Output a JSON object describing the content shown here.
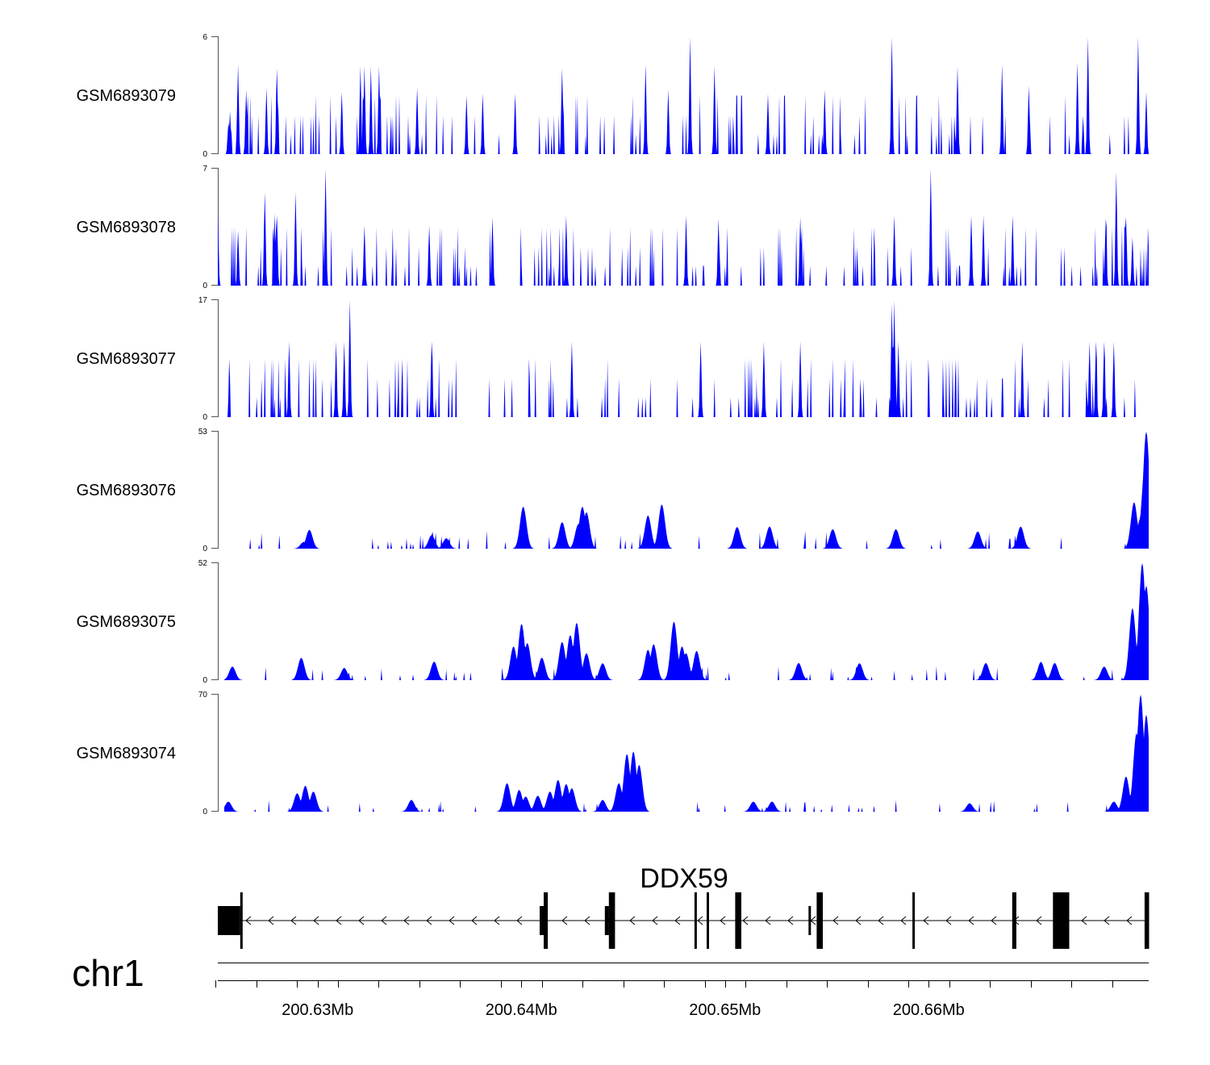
{
  "chart_data": {
    "type": "area",
    "title": "",
    "chromosome": "chr1",
    "region": [
      200.6251,
      200.6708
    ],
    "region_units": "Mb",
    "fill_color": "#0000ff",
    "gene_color": "#000000",
    "tracks": [
      {
        "name": "GSM6893079",
        "ylim": [
          0,
          6
        ],
        "ytick_labels": [
          "0",
          "6"
        ],
        "seed": 7919,
        "baseline_pct": 0.17,
        "bumps": [
          [
            200.6256,
            1.6
          ],
          [
            200.6257,
            2.2
          ],
          [
            200.6261,
            4.6
          ],
          [
            200.6265,
            3.3
          ],
          [
            200.6275,
            3.4
          ],
          [
            200.628,
            4.4
          ],
          [
            200.6312,
            3.2
          ],
          [
            200.6321,
            4.5
          ],
          [
            200.6323,
            4.5
          ],
          [
            200.6326,
            4.5
          ],
          [
            200.633,
            4.5
          ],
          [
            200.6349,
            3.4
          ],
          [
            200.6373,
            3.0
          ],
          [
            200.6381,
            3.1
          ],
          [
            200.6397,
            3.1
          ],
          [
            200.642,
            4.4
          ],
          [
            200.6461,
            4.6
          ],
          [
            200.6472,
            3.3
          ],
          [
            200.6483,
            6.0
          ],
          [
            200.6495,
            4.5
          ],
          [
            200.6521,
            3.1
          ],
          [
            200.6549,
            3.3
          ],
          [
            200.6582,
            4.5
          ],
          [
            200.6582,
            6.0
          ],
          [
            200.6614,
            4.5
          ],
          [
            200.6636,
            4.6
          ],
          [
            200.6649,
            3.5
          ],
          [
            200.6673,
            4.7
          ],
          [
            200.6678,
            6.0
          ],
          [
            200.6703,
            6.0
          ],
          [
            200.6707,
            3.2
          ]
        ]
      },
      {
        "name": "GSM6893078",
        "ylim": [
          0,
          7
        ],
        "ytick_labels": [
          "0",
          "7"
        ],
        "seed": 6301,
        "baseline_pct": 0.2,
        "bumps": [
          [
            200.6251,
            4.3
          ],
          [
            200.6261,
            3.3
          ],
          [
            200.6274,
            5.6
          ],
          [
            200.6279,
            4.3
          ],
          [
            200.628,
            4.2
          ],
          [
            200.6289,
            5.6
          ],
          [
            200.6304,
            7.0
          ],
          [
            200.6323,
            3.6
          ],
          [
            200.6355,
            3.6
          ],
          [
            200.6386,
            4.1
          ],
          [
            200.6422,
            4.2
          ],
          [
            200.6481,
            4.2
          ],
          [
            200.6497,
            4.0
          ],
          [
            200.6537,
            4.1
          ],
          [
            200.6583,
            4.2
          ],
          [
            200.6601,
            7.0
          ],
          [
            200.6621,
            4.2
          ],
          [
            200.6627,
            4.2
          ],
          [
            200.6641,
            4.2
          ],
          [
            200.6687,
            4.0
          ],
          [
            200.6692,
            6.8
          ],
          [
            200.6697,
            4.1
          ],
          [
            200.67,
            2.9
          ]
        ]
      },
      {
        "name": "GSM6893077",
        "ylim": [
          0,
          17
        ],
        "ytick_labels": [
          "0",
          "17"
        ],
        "seed": 4127,
        "baseline_pct": 0.28,
        "bumps": [
          [
            200.6286,
            11.0
          ],
          [
            200.6309,
            11.0
          ],
          [
            200.6313,
            11.0
          ],
          [
            200.6316,
            17.0
          ],
          [
            200.6356,
            11.0
          ],
          [
            200.6425,
            11.0
          ],
          [
            200.6488,
            11.0
          ],
          [
            200.6519,
            11.0
          ],
          [
            200.6537,
            11.0
          ],
          [
            200.6582,
            16.5
          ],
          [
            200.6585,
            11.0
          ],
          [
            200.6583,
            17.0
          ],
          [
            200.6646,
            11.0
          ],
          [
            200.6679,
            11.0
          ],
          [
            200.6682,
            11.0
          ],
          [
            200.6686,
            11.0
          ],
          [
            200.6691,
            11.0
          ]
        ]
      },
      {
        "name": "GSM6893076",
        "ylim": [
          0,
          53
        ],
        "ytick_labels": [
          "0",
          "53"
        ],
        "seed": 3313,
        "baseline_pct": 0.08,
        "bumps": [
          [
            200.6293,
            3.0
          ],
          [
            200.6296,
            8.5
          ],
          [
            200.6363,
            4.7
          ],
          [
            200.6356,
            6.1
          ],
          [
            200.6401,
            19.0
          ],
          [
            200.642,
            12.0
          ],
          [
            200.6428,
            11.0
          ],
          [
            200.6432,
            16.5
          ],
          [
            200.643,
            19.0
          ],
          [
            200.6462,
            15.0
          ],
          [
            200.6469,
            20.0
          ],
          [
            200.6506,
            9.8
          ],
          [
            200.6522,
            10.0
          ],
          [
            200.6553,
            8.8
          ],
          [
            200.6584,
            8.8
          ],
          [
            200.6624,
            7.8
          ],
          [
            200.6645,
            10.0
          ],
          [
            200.6701,
            21.0
          ],
          [
            200.6707,
            53.0
          ],
          [
            200.6706,
            35.0
          ],
          [
            200.6704,
            14.0
          ]
        ]
      },
      {
        "name": "GSM6893075",
        "ylim": [
          0,
          52
        ],
        "ytick_labels": [
          "0",
          "52"
        ],
        "seed": 2267,
        "baseline_pct": 0.06,
        "bumps": [
          [
            200.6258,
            6.0
          ],
          [
            200.6292,
            9.9
          ],
          [
            200.6313,
            5.4
          ],
          [
            200.6357,
            8.2
          ],
          [
            200.6396,
            15.0
          ],
          [
            200.64,
            25.0
          ],
          [
            200.6403,
            16.5
          ],
          [
            200.641,
            10.0
          ],
          [
            200.642,
            17.0
          ],
          [
            200.6424,
            20.0
          ],
          [
            200.6427,
            17.0
          ],
          [
            200.6427,
            25.5
          ],
          [
            200.6432,
            12.0
          ],
          [
            200.644,
            7.5
          ],
          [
            200.6462,
            13.5
          ],
          [
            200.6465,
            16.0
          ],
          [
            200.6475,
            26.0
          ],
          [
            200.6479,
            15.0
          ],
          [
            200.6481,
            12.0
          ],
          [
            200.6486,
            13.0
          ],
          [
            200.6536,
            7.6
          ],
          [
            200.6566,
            7.5
          ],
          [
            200.6628,
            7.6
          ],
          [
            200.6655,
            8.1
          ],
          [
            200.6662,
            7.6
          ],
          [
            200.6686,
            6.0
          ],
          [
            200.67,
            32.0
          ],
          [
            200.6705,
            52.0
          ],
          [
            200.6707,
            42.0
          ]
        ]
      },
      {
        "name": "GSM6893074",
        "ylim": [
          0,
          70
        ],
        "ytick_labels": [
          "0",
          "70"
        ],
        "seed": 1117,
        "baseline_pct": 0.05,
        "bumps": [
          [
            200.6256,
            6.0
          ],
          [
            200.629,
            11.0
          ],
          [
            200.6294,
            15.5
          ],
          [
            200.6298,
            12.0
          ],
          [
            200.6346,
            7.0
          ],
          [
            200.6393,
            17.0
          ],
          [
            200.6399,
            13.0
          ],
          [
            200.6402,
            9.0
          ],
          [
            200.6408,
            9.5
          ],
          [
            200.6414,
            12.0
          ],
          [
            200.6418,
            19.0
          ],
          [
            200.6422,
            16.5
          ],
          [
            200.6425,
            14.0
          ],
          [
            200.644,
            7.0
          ],
          [
            200.6448,
            17.0
          ],
          [
            200.6452,
            34.5
          ],
          [
            200.6455,
            36.0
          ],
          [
            200.6458,
            28.0
          ],
          [
            200.6514,
            6.0
          ],
          [
            200.6523,
            6.0
          ],
          [
            200.662,
            5.0
          ],
          [
            200.6691,
            6.0
          ],
          [
            200.6697,
            21.0
          ],
          [
            200.6702,
            47.0
          ],
          [
            200.6704,
            70.0
          ],
          [
            200.6707,
            58.0
          ]
        ]
      }
    ],
    "gene": {
      "name": "DDX59",
      "strand": "-",
      "start": 200.6251,
      "end": 200.6708,
      "exons": [
        {
          "start": 200.6251,
          "end": 200.6262,
          "height": "utr"
        },
        {
          "start": 200.6262,
          "end": 200.6263,
          "height": "cds"
        },
        {
          "start": 200.6409,
          "end": 200.6411,
          "height": "utr"
        },
        {
          "start": 200.6411,
          "end": 200.6413,
          "height": "cds"
        },
        {
          "start": 200.6441,
          "end": 200.6443,
          "height": "utr"
        },
        {
          "start": 200.6443,
          "end": 200.6446,
          "height": "cds"
        },
        {
          "start": 200.6485,
          "end": 200.6486,
          "height": "cds"
        },
        {
          "start": 200.6491,
          "end": 200.6492,
          "height": "cds"
        },
        {
          "start": 200.6505,
          "end": 200.6508,
          "height": "cds"
        },
        {
          "start": 200.6541,
          "end": 200.6542,
          "height": "utr"
        },
        {
          "start": 200.6545,
          "end": 200.6548,
          "height": "cds"
        },
        {
          "start": 200.6592,
          "end": 200.6593,
          "height": "cds"
        },
        {
          "start": 200.6641,
          "end": 200.6643,
          "height": "cds"
        },
        {
          "start": 200.6661,
          "end": 200.6669,
          "height": "cds"
        },
        {
          "start": 200.6706,
          "end": 200.6707,
          "height": "cds"
        },
        {
          "start": 200.6707,
          "end": 200.6708,
          "height": "cds"
        }
      ]
    },
    "xaxis": {
      "ticks": [
        200.625,
        200.627,
        200.629,
        200.631,
        200.633,
        200.635,
        200.637,
        200.639,
        200.641,
        200.643,
        200.645,
        200.647,
        200.649,
        200.651,
        200.653,
        200.655,
        200.657,
        200.659,
        200.661,
        200.663,
        200.665,
        200.667,
        200.669
      ],
      "labeled_ticks": [
        {
          "value": 200.63,
          "label": "200.63Mb"
        },
        {
          "value": 200.64,
          "label": "200.64Mb"
        },
        {
          "value": 200.65,
          "label": "200.65Mb"
        },
        {
          "value": 200.66,
          "label": "200.66Mb"
        }
      ]
    }
  }
}
